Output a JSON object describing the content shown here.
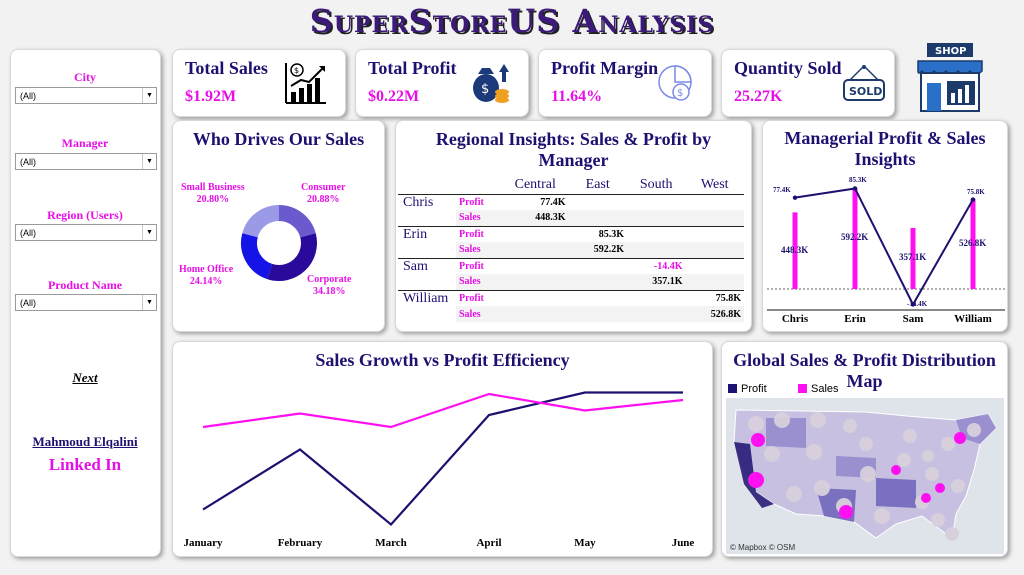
{
  "title": "SuperStoreUS Analysis",
  "filters": [
    {
      "label": "City",
      "value": "(All)"
    },
    {
      "label": "Manager",
      "value": "(All)"
    },
    {
      "label": "Region (Users)",
      "value": "(All)"
    },
    {
      "label": "Product Name",
      "value": "(All)"
    }
  ],
  "sidebar": {
    "next_label": "Next",
    "author": "Mahmoud Elqalini",
    "linkedin_label": "Linked In"
  },
  "kpis": [
    {
      "title": "Total Sales",
      "value": "$1.92M",
      "icon": "sales-chart-icon"
    },
    {
      "title": "Total Profit",
      "value": "$0.22M",
      "icon": "money-bag-icon"
    },
    {
      "title": "Profit Margin",
      "value": "11.64%",
      "icon": "pie-coin-icon"
    },
    {
      "title": "Quantity Sold",
      "value": "25.27K",
      "icon": "sold-sign-icon"
    }
  ],
  "shop": {
    "label": "SHOP",
    "icon": "shop-icon"
  },
  "donut": {
    "title": "Who Drives Our Sales",
    "segments": [
      {
        "name": "Consumer",
        "pct": "20.88%",
        "value": 20.88,
        "color": "#6a5acd"
      },
      {
        "name": "Corporate",
        "pct": "34.18%",
        "value": 34.18,
        "color": "#2a0a9a"
      },
      {
        "name": "Home Office",
        "pct": "24.14%",
        "value": 24.14,
        "color": "#1414e6"
      },
      {
        "name": "Small Business",
        "pct": "20.80%",
        "value": 20.8,
        "color": "#9a9ae6"
      }
    ]
  },
  "regional": {
    "title": "Regional Insights: Sales & Profit by Manager",
    "columns": [
      "Central",
      "East",
      "South",
      "West"
    ],
    "rows": [
      {
        "manager": "Chris",
        "profit": [
          "77.4K",
          "",
          "",
          ""
        ],
        "sales": [
          "448.3K",
          "",
          "",
          ""
        ]
      },
      {
        "manager": "Erin",
        "profit": [
          "",
          "85.3K",
          "",
          ""
        ],
        "sales": [
          "",
          "592.2K",
          "",
          ""
        ]
      },
      {
        "manager": "Sam",
        "profit": [
          "",
          "",
          "-14.4K",
          ""
        ],
        "sales": [
          "",
          "",
          "357.1K",
          ""
        ]
      },
      {
        "manager": "William",
        "profit": [
          "",
          "",
          "",
          "75.8K"
        ],
        "sales": [
          "",
          "",
          "",
          "526.8K"
        ]
      }
    ],
    "profit_label": "Profit",
    "sales_label": "Sales"
  },
  "managerial": {
    "title": "Managerial Profit & Sales Insights",
    "categories": [
      "Chris",
      "Erin",
      "Sam",
      "William"
    ],
    "profit_labels": [
      "77.4K",
      "85.3K",
      "-14.4K",
      "75.8K"
    ],
    "sales_labels": [
      "448.3K",
      "592.2K",
      "357.1K",
      "526.8K"
    ]
  },
  "growth": {
    "title": "Sales Growth vs Profit Efficiency",
    "months": [
      "January",
      "February",
      "March",
      "April",
      "May",
      "June"
    ]
  },
  "map": {
    "title": "Global Sales & Profit Distribution Map",
    "legend": [
      {
        "name": "Profit",
        "color": "#1c1070"
      },
      {
        "name": "Sales",
        "color": "#ff10f0"
      }
    ],
    "credit": "© Mapbox © OSM"
  },
  "chart_data": [
    {
      "type": "pie",
      "title": "Who Drives Our Sales",
      "categories": [
        "Consumer",
        "Corporate",
        "Home Office",
        "Small Business"
      ],
      "values": [
        20.88,
        34.18,
        24.14,
        20.8
      ]
    },
    {
      "type": "bar",
      "title": "Managerial Profit & Sales Insights",
      "categories": [
        "Chris",
        "Erin",
        "Sam",
        "William"
      ],
      "series": [
        {
          "name": "Sales",
          "values": [
            448.3,
            592.2,
            357.1,
            526.8
          ]
        },
        {
          "name": "Profit",
          "values": [
            77.4,
            85.3,
            -14.4,
            75.8
          ]
        }
      ]
    },
    {
      "type": "line",
      "title": "Sales Growth vs Profit Efficiency",
      "categories": [
        "January",
        "February",
        "March",
        "April",
        "May",
        "June"
      ],
      "series": [
        {
          "name": "Profit",
          "values": [
            0.15,
            0.55,
            0.05,
            0.78,
            0.93,
            0.93
          ]
        },
        {
          "name": "Sales",
          "values": [
            0.7,
            0.79,
            0.7,
            0.92,
            0.81,
            0.88
          ]
        }
      ]
    }
  ]
}
